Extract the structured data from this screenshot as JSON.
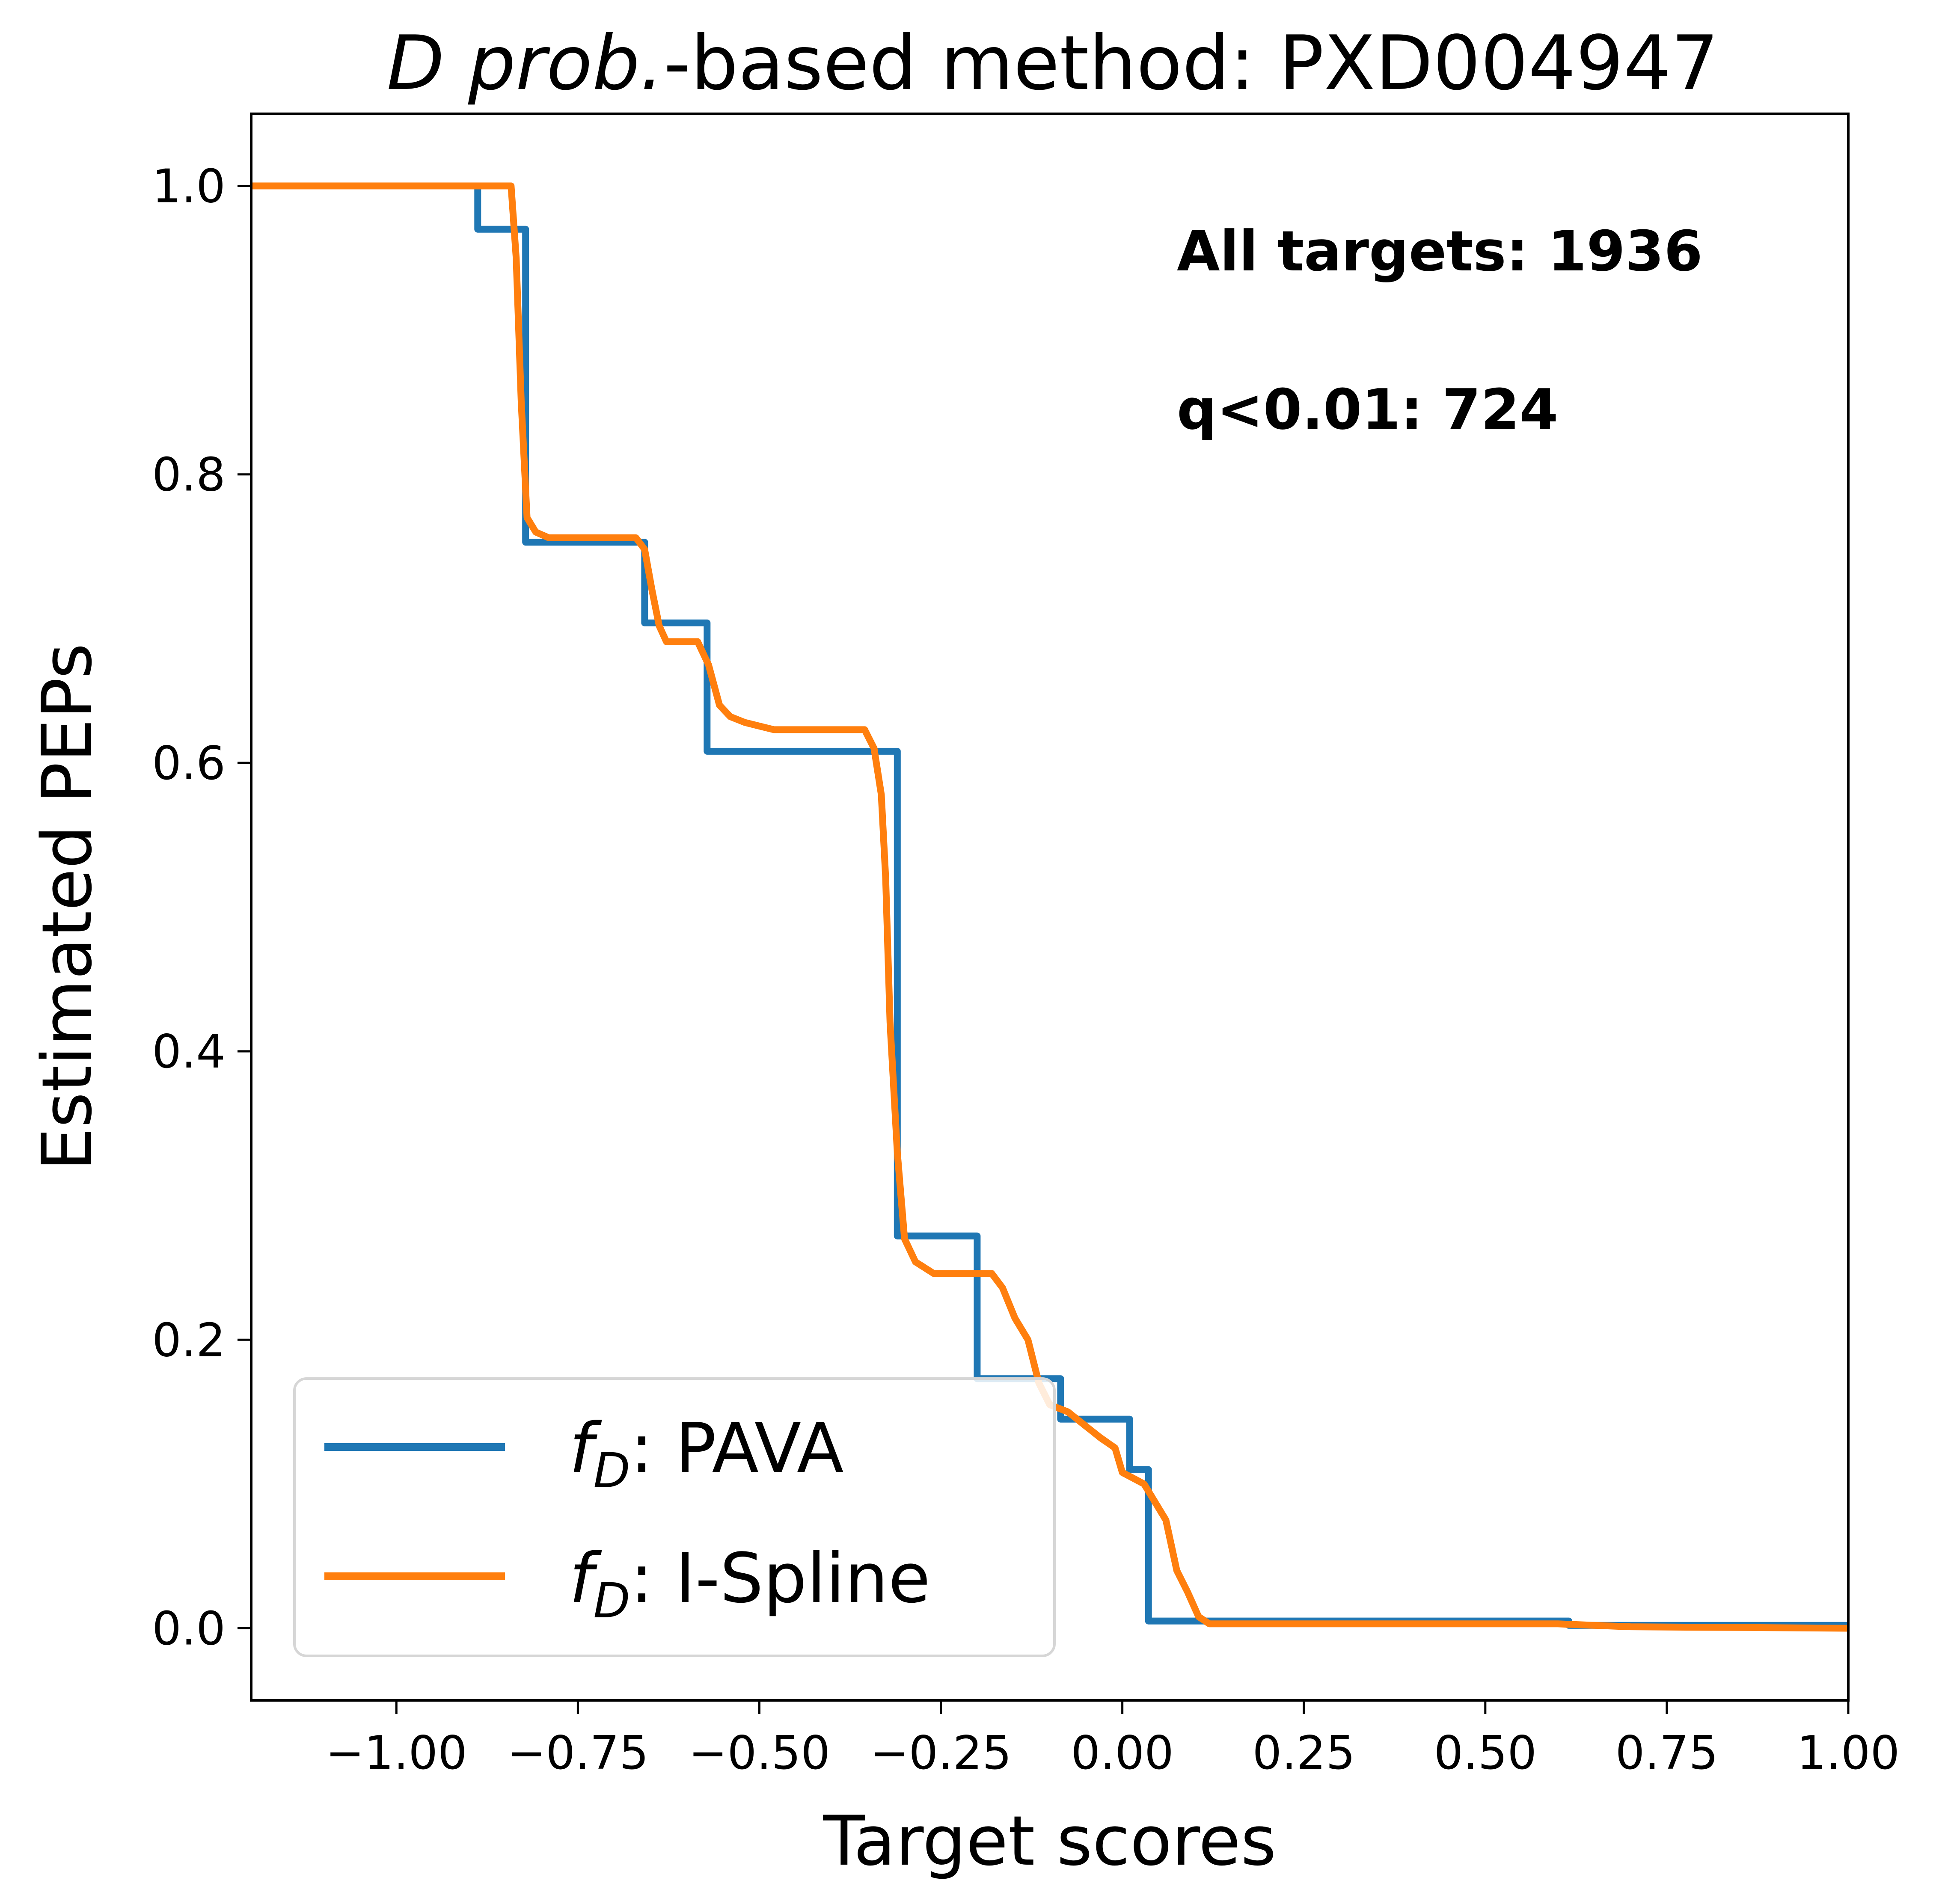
{
  "chart_data": {
    "type": "line",
    "title_parts": {
      "method": "D prob.",
      "rest": "-based method: PXD004947"
    },
    "xlabel": "Target scores",
    "ylabel": "Estimated PEPs",
    "xlim": [
      -1.2,
      1.0
    ],
    "ylim": [
      -0.05,
      1.05
    ],
    "x_ticks": [
      {
        "value": -1.0,
        "label": "−1.00"
      },
      {
        "value": -0.75,
        "label": "−0.75"
      },
      {
        "value": -0.5,
        "label": "−0.50"
      },
      {
        "value": -0.25,
        "label": "−0.25"
      },
      {
        "value": 0.0,
        "label": "0.00"
      },
      {
        "value": 0.25,
        "label": "0.25"
      },
      {
        "value": 0.5,
        "label": "0.50"
      },
      {
        "value": 0.75,
        "label": "0.75"
      },
      {
        "value": 1.0,
        "label": "1.00"
      }
    ],
    "y_ticks": [
      {
        "value": 0.0,
        "label": "0.0"
      },
      {
        "value": 0.2,
        "label": "0.2"
      },
      {
        "value": 0.4,
        "label": "0.4"
      },
      {
        "value": 0.6,
        "label": "0.6"
      },
      {
        "value": 0.8,
        "label": "0.8"
      },
      {
        "value": 1.0,
        "label": "1.0"
      }
    ],
    "grid": false,
    "legend_position": "lower-left",
    "annotations": [
      {
        "text": "All targets: 1936"
      },
      {
        "text": "q<0.01: 724"
      }
    ],
    "series": [
      {
        "legend_var": "f",
        "legend_sub": "D",
        "legend_text": ": PAVA",
        "color": "#1f77b4",
        "style": "step",
        "points": [
          [
            -1.2,
            1.0
          ],
          [
            -0.888,
            1.0
          ],
          [
            -0.888,
            0.97
          ],
          [
            -0.822,
            0.97
          ],
          [
            -0.822,
            0.753
          ],
          [
            -0.658,
            0.753
          ],
          [
            -0.658,
            0.697
          ],
          [
            -0.572,
            0.697
          ],
          [
            -0.572,
            0.608
          ],
          [
            -0.31,
            0.608
          ],
          [
            -0.31,
            0.272
          ],
          [
            -0.2,
            0.272
          ],
          [
            -0.2,
            0.173
          ],
          [
            -0.085,
            0.173
          ],
          [
            -0.085,
            0.145
          ],
          [
            0.01,
            0.145
          ],
          [
            0.01,
            0.11
          ],
          [
            0.036,
            0.11
          ],
          [
            0.036,
            0.005
          ],
          [
            0.615,
            0.005
          ],
          [
            0.615,
            0.002
          ],
          [
            1.0,
            0.002
          ]
        ]
      },
      {
        "legend_var": "f",
        "legend_sub": "D",
        "legend_text": ": I-Spline",
        "color": "#ff7f0e",
        "style": "line",
        "points": [
          [
            -1.2,
            1.0
          ],
          [
            -0.842,
            1.0
          ],
          [
            -0.835,
            0.95
          ],
          [
            -0.828,
            0.85
          ],
          [
            -0.82,
            0.77
          ],
          [
            -0.808,
            0.76
          ],
          [
            -0.79,
            0.756
          ],
          [
            -0.67,
            0.756
          ],
          [
            -0.658,
            0.748
          ],
          [
            -0.648,
            0.72
          ],
          [
            -0.638,
            0.695
          ],
          [
            -0.628,
            0.684
          ],
          [
            -0.585,
            0.684
          ],
          [
            -0.57,
            0.668
          ],
          [
            -0.555,
            0.64
          ],
          [
            -0.54,
            0.632
          ],
          [
            -0.52,
            0.628
          ],
          [
            -0.48,
            0.623
          ],
          [
            -0.355,
            0.623
          ],
          [
            -0.342,
            0.61
          ],
          [
            -0.332,
            0.578
          ],
          [
            -0.326,
            0.52
          ],
          [
            -0.32,
            0.42
          ],
          [
            -0.31,
            0.33
          ],
          [
            -0.3,
            0.27
          ],
          [
            -0.285,
            0.254
          ],
          [
            -0.26,
            0.246
          ],
          [
            -0.18,
            0.246
          ],
          [
            -0.165,
            0.236
          ],
          [
            -0.148,
            0.215
          ],
          [
            -0.13,
            0.2
          ],
          [
            -0.115,
            0.17
          ],
          [
            -0.1,
            0.155
          ],
          [
            -0.075,
            0.15
          ],
          [
            -0.055,
            0.142
          ],
          [
            -0.03,
            0.132
          ],
          [
            -0.01,
            0.125
          ],
          [
            0.0,
            0.108
          ],
          [
            0.03,
            0.1
          ],
          [
            0.06,
            0.075
          ],
          [
            0.075,
            0.04
          ],
          [
            0.09,
            0.025
          ],
          [
            0.105,
            0.008
          ],
          [
            0.12,
            0.003
          ],
          [
            0.6,
            0.003
          ],
          [
            0.7,
            0.001
          ],
          [
            1.0,
            0.0
          ]
        ]
      }
    ]
  }
}
